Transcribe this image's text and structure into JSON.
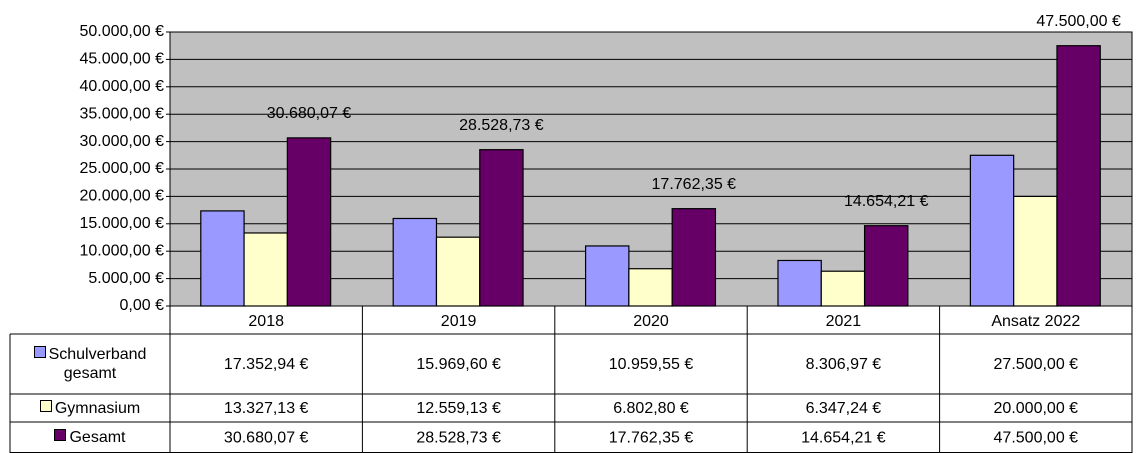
{
  "chart_data": {
    "type": "bar",
    "categories": [
      "2018",
      "2019",
      "2020",
      "2021",
      "Ansatz 2022"
    ],
    "series": [
      {
        "name": "Schulverband gesamt",
        "color": "#9999ff",
        "values": [
          17352.94,
          15969.6,
          10959.55,
          8306.97,
          27500.0
        ],
        "value_labels": [
          "17.352,94 €",
          "15.969,60 €",
          "10.959,55 €",
          "8.306,97 €",
          "27.500,00 €"
        ]
      },
      {
        "name": "Gymnasium",
        "color": "#ffffcc",
        "values": [
          13327.13,
          12559.13,
          6802.8,
          6347.24,
          20000.0
        ],
        "value_labels": [
          "13.327,13 €",
          "12.559,13 €",
          "6.802,80 €",
          "6.347,24 €",
          "20.000,00 €"
        ]
      },
      {
        "name": "Gesamt",
        "color": "#660066",
        "values": [
          30680.07,
          28528.73,
          17762.35,
          14654.21,
          47500.0
        ],
        "value_labels": [
          "30.680,07 €",
          "28.528,73 €",
          "17.762,35 €",
          "14.654,21 €",
          "47.500,00 €"
        ]
      }
    ],
    "ylim": [
      0,
      50000
    ],
    "yticks": [
      {
        "value": 0,
        "label": "0,00 €"
      },
      {
        "value": 5000,
        "label": "5.000,00 €"
      },
      {
        "value": 10000,
        "label": "10.000,00 €"
      },
      {
        "value": 15000,
        "label": "15.000,00 €"
      },
      {
        "value": 20000,
        "label": "20.000,00 €"
      },
      {
        "value": 25000,
        "label": "25.000,00 €"
      },
      {
        "value": 30000,
        "label": "30.000,00 €"
      },
      {
        "value": 35000,
        "label": "35.000,00 €"
      },
      {
        "value": 40000,
        "label": "40.000,00 €"
      },
      {
        "value": 45000,
        "label": "45.000,00 €"
      },
      {
        "value": 50000,
        "label": "50.000,00 €"
      }
    ],
    "grid": true
  }
}
